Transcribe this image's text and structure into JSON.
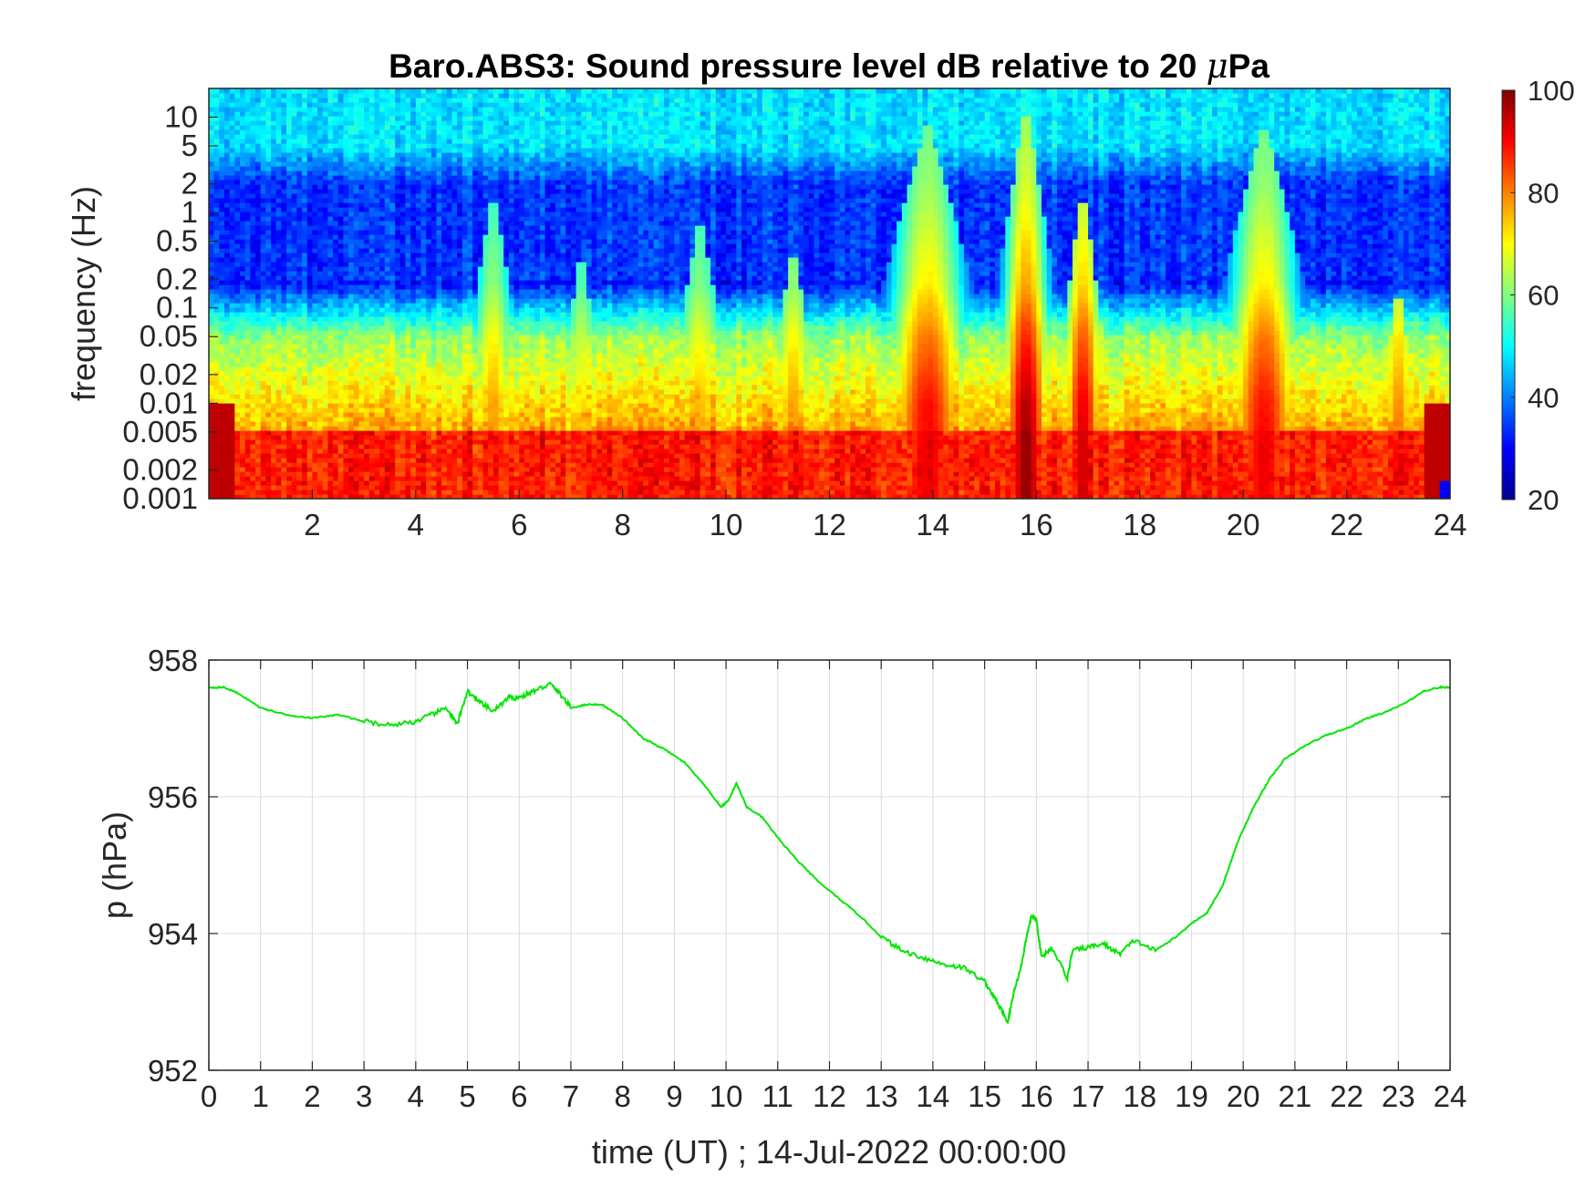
{
  "figure": {
    "title_main": "Baro.ABS3: Sound pressure level dB relative to 20 ",
    "title_mu": "μ",
    "title_tail": "Pa"
  },
  "chart_data": [
    {
      "type": "heatmap",
      "title": "Baro.ABS3: Sound pressure level dB relative to 20 μPa",
      "ylabel": "frequency (Hz)",
      "xlabel": "",
      "xlim": [
        0,
        24
      ],
      "x_ticks": [
        2,
        4,
        6,
        8,
        10,
        12,
        14,
        16,
        18,
        20,
        22,
        24
      ],
      "x_tick_labels": [
        "2",
        "4",
        "6",
        "8",
        "10",
        "12",
        "14",
        "16",
        "18",
        "20",
        "22",
        "24"
      ],
      "y_scale": "log",
      "ylim": [
        0.001,
        20
      ],
      "y_ticks": [
        0.001,
        0.002,
        0.005,
        0.01,
        0.02,
        0.05,
        0.1,
        0.2,
        0.5,
        1,
        2,
        5,
        10
      ],
      "y_tick_labels": [
        "0.001",
        "0.002",
        "0.005",
        "0.01",
        "0.02",
        "0.05",
        "0.1",
        "0.2",
        "0.5",
        "1",
        "2",
        "5",
        "10"
      ],
      "colormap": "jet",
      "clim": [
        20,
        100
      ],
      "colorbar_ticks": [
        20,
        40,
        60,
        80,
        100
      ],
      "colorbar_tick_labels": [
        "20",
        "40",
        "60",
        "80",
        "100"
      ],
      "colorbar_location": "right",
      "grid": false,
      "activity_events": [
        {
          "t": 5.5,
          "width": 0.35,
          "top_frequency_hz": 2,
          "peak_db": 78
        },
        {
          "t": 7.2,
          "width": 0.3,
          "top_frequency_hz": 0.5,
          "peak_db": 72
        },
        {
          "t": 9.5,
          "width": 0.4,
          "top_frequency_hz": 1,
          "peak_db": 76
        },
        {
          "t": 11.3,
          "width": 0.35,
          "top_frequency_hz": 0.5,
          "peak_db": 78
        },
        {
          "t": 13.9,
          "width": 0.6,
          "top_frequency_hz": 10,
          "peak_db": 92
        },
        {
          "t": 15.8,
          "width": 0.35,
          "top_frequency_hz": 15,
          "peak_db": 100
        },
        {
          "t": 16.9,
          "width": 0.3,
          "top_frequency_hz": 2,
          "peak_db": 95
        },
        {
          "t": 20.4,
          "width": 0.55,
          "top_frequency_hz": 10,
          "peak_db": 92
        },
        {
          "t": 23.0,
          "width": 0.3,
          "top_frequency_hz": 0.2,
          "peak_db": 80
        }
      ],
      "background_levels_db": {
        "above_5_hz": 48,
        "0.2_to_2_hz_quiet": 30,
        "0.01_to_0.05_hz_quiet": 62,
        "below_0.005_hz": 88
      }
    },
    {
      "type": "line",
      "title": "",
      "xlabel": "time (UT) ; 14-Jul-2022 00:00:00",
      "ylabel": "p (hPa)",
      "xlim": [
        0,
        24
      ],
      "ylim": [
        952,
        958
      ],
      "x_ticks": [
        0,
        1,
        2,
        3,
        4,
        5,
        6,
        7,
        8,
        9,
        10,
        11,
        12,
        13,
        14,
        15,
        16,
        17,
        18,
        19,
        20,
        21,
        22,
        23,
        24
      ],
      "x_tick_labels": [
        "0",
        "1",
        "2",
        "3",
        "4",
        "5",
        "6",
        "7",
        "8",
        "9",
        "10",
        "11",
        "12",
        "13",
        "14",
        "15",
        "16",
        "17",
        "18",
        "19",
        "20",
        "21",
        "22",
        "23",
        "24"
      ],
      "y_ticks": [
        952,
        954,
        956,
        958
      ],
      "y_tick_labels": [
        "952",
        "954",
        "956",
        "958"
      ],
      "grid": true,
      "line_color": "#00e600",
      "series": [
        {
          "x": [
            0,
            0.3,
            0.6,
            1.0,
            1.5,
            2.0,
            2.5,
            3.0,
            3.5,
            4.0,
            4.3,
            4.6,
            4.8,
            5.0,
            5.2,
            5.5,
            5.8,
            6.0,
            6.3,
            6.6,
            6.8,
            7.0,
            7.3,
            7.6,
            8.0,
            8.4,
            8.8,
            9.2,
            9.6,
            9.9,
            10.05,
            10.2,
            10.4,
            10.7,
            11.0,
            11.4,
            11.8,
            12.2,
            12.6,
            13.0,
            13.4,
            13.8,
            14.2,
            14.6,
            15.0,
            15.2,
            15.35,
            15.45,
            15.55,
            15.7,
            15.8,
            15.9,
            16.0,
            16.1,
            16.3,
            16.6,
            16.7,
            17.0,
            17.3,
            17.6,
            17.9,
            18.3,
            18.7,
            19.0,
            19.3,
            19.6,
            19.9,
            20.2,
            20.5,
            20.8,
            21.2,
            21.6,
            22.0,
            22.4,
            22.8,
            23.2,
            23.5,
            23.8,
            24.0
          ],
          "y": [
            957.6,
            957.6,
            957.5,
            957.3,
            957.2,
            957.15,
            957.2,
            957.1,
            957.05,
            957.1,
            957.2,
            957.3,
            957.05,
            957.55,
            957.4,
            957.25,
            957.45,
            957.45,
            957.55,
            957.65,
            957.5,
            957.3,
            957.35,
            957.35,
            957.15,
            956.85,
            956.7,
            956.5,
            956.15,
            955.85,
            955.95,
            956.2,
            955.85,
            955.7,
            955.4,
            955.05,
            954.75,
            954.5,
            954.25,
            953.95,
            953.75,
            953.65,
            953.55,
            953.5,
            953.3,
            953.05,
            952.85,
            952.7,
            953.1,
            953.5,
            953.9,
            954.25,
            954.2,
            953.65,
            953.8,
            953.35,
            953.75,
            953.8,
            953.85,
            953.7,
            953.9,
            953.75,
            953.95,
            954.15,
            954.3,
            954.7,
            955.35,
            955.85,
            956.25,
            956.55,
            956.75,
            956.9,
            957.0,
            957.15,
            957.25,
            957.4,
            957.55,
            957.6,
            957.6
          ]
        }
      ]
    }
  ]
}
